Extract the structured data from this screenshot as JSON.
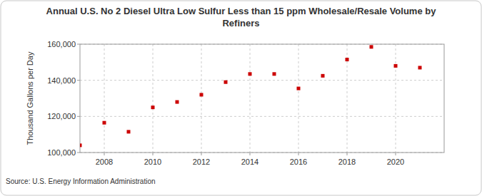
{
  "chart_data": {
    "type": "scatter",
    "title": "Annual U.S. No 2 Diesel Ultra Low Sulfur Less than 15 ppm Wholesale/Resale Volume by Refiners",
    "y_label": "Thousand Gallons per Day",
    "source": "Source: U.S. Energy Information Administration",
    "x": [
      2007,
      2008,
      2009,
      2010,
      2011,
      2012,
      2013,
      2014,
      2015,
      2016,
      2017,
      2018,
      2019,
      2020,
      2021
    ],
    "values": [
      104000,
      116500,
      111500,
      125000,
      128000,
      132000,
      139000,
      143500,
      143500,
      135500,
      142500,
      151500,
      158500,
      148000,
      147000
    ],
    "color": "#cc0000",
    "marker": "square",
    "xlim": [
      2007,
      2022
    ],
    "xticks": [
      2008,
      2010,
      2012,
      2014,
      2016,
      2018,
      2020
    ],
    "ylim": [
      100000,
      160000
    ],
    "yticks": [
      {
        "value": 100000,
        "label": "100,000"
      },
      {
        "value": 120000,
        "label": "120,000"
      },
      {
        "value": 140000,
        "label": "140,000"
      },
      {
        "value": 160000,
        "label": "160,000"
      }
    ],
    "grid": true
  }
}
